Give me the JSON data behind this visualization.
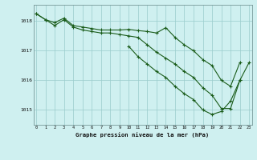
{
  "x": [
    0,
    1,
    2,
    3,
    4,
    5,
    6,
    7,
    8,
    9,
    10,
    11,
    12,
    13,
    14,
    15,
    16,
    17,
    18,
    19,
    20,
    21,
    22,
    23
  ],
  "line1": [
    1018.25,
    1018.05,
    1017.95,
    1018.1,
    1017.85,
    1017.8,
    1017.75,
    1017.7,
    1017.7,
    1017.7,
    1017.72,
    1017.68,
    1017.65,
    1017.6,
    1017.78,
    1017.45,
    1017.2,
    1017.0,
    1016.7,
    1016.5,
    1016.0,
    1015.8,
    1016.6,
    null
  ],
  "line2": [
    1018.25,
    1018.05,
    1017.85,
    1018.05,
    1017.8,
    1017.7,
    1017.65,
    1017.6,
    1017.6,
    1017.55,
    1017.5,
    1017.45,
    1017.2,
    1016.95,
    1016.75,
    1016.55,
    1016.3,
    1016.1,
    1015.75,
    1015.5,
    1015.05,
    1015.05,
    1016.0,
    null
  ],
  "line3": [
    null,
    null,
    null,
    null,
    null,
    null,
    null,
    null,
    null,
    null,
    1017.15,
    1016.8,
    1016.55,
    1016.3,
    1016.1,
    1015.8,
    1015.55,
    1015.35,
    1015.0,
    1014.85,
    1014.95,
    1015.3,
    1016.0,
    1016.6
  ],
  "bg_color": "#cff0f0",
  "grid_color": "#99cccc",
  "line_color": "#1a5c1a",
  "ylabel_values": [
    1015,
    1016,
    1017,
    1018
  ],
  "xlabel_values": [
    0,
    1,
    2,
    3,
    4,
    5,
    6,
    7,
    8,
    9,
    10,
    11,
    12,
    13,
    14,
    15,
    16,
    17,
    18,
    19,
    20,
    21,
    22,
    23
  ],
  "xlabel": "Graphe pression niveau de la mer (hPa)",
  "ylim": [
    1014.5,
    1018.55
  ],
  "xlim": [
    -0.3,
    23.3
  ]
}
